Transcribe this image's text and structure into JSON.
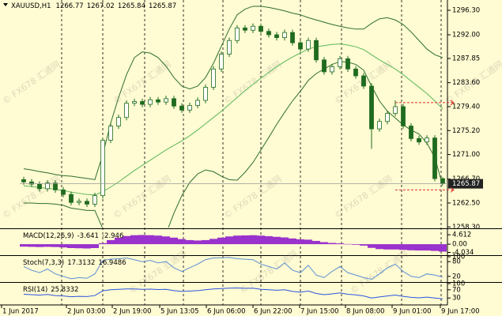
{
  "chart_data": {
    "type": "candlestick",
    "symbol": "XAUUSD,H1",
    "watermark": "© FX678 汇通网",
    "ohlc": [
      [
        1266.6,
        1267.1,
        1265.7,
        1266.2
      ],
      [
        1266.2,
        1266.7,
        1265.3,
        1265.8
      ],
      [
        1265.8,
        1266.3,
        1264.5,
        1265.0
      ],
      [
        1265.0,
        1266.5,
        1264.5,
        1266.0
      ],
      [
        1266.0,
        1266.5,
        1264.3,
        1264.8
      ],
      [
        1264.8,
        1265.3,
        1263.5,
        1264.0
      ],
      [
        1264.0,
        1264.5,
        1262.1,
        1262.6
      ],
      [
        1262.6,
        1263.3,
        1262.1,
        1262.8
      ],
      [
        1262.8,
        1263.3,
        1261.8,
        1262.3
      ],
      [
        1262.3,
        1264.3,
        1261.8,
        1263.8
      ],
      [
        1263.8,
        1274.0,
        1263.3,
        1273.5
      ],
      [
        1273.5,
        1276.5,
        1273.0,
        1276.0
      ],
      [
        1276.0,
        1278.0,
        1275.5,
        1277.5
      ],
      [
        1277.5,
        1280.5,
        1277.0,
        1280.0
      ],
      [
        1280.0,
        1280.8,
        1279.5,
        1280.3
      ],
      [
        1280.3,
        1280.8,
        1279.3,
        1279.8
      ],
      [
        1279.8,
        1281.1,
        1279.3,
        1280.6
      ],
      [
        1280.6,
        1281.1,
        1279.7,
        1280.2
      ],
      [
        1280.2,
        1281.3,
        1279.7,
        1280.8
      ],
      [
        1280.8,
        1281.3,
        1279.0,
        1279.5
      ],
      [
        1279.5,
        1280.0,
        1278.3,
        1278.8
      ],
      [
        1278.8,
        1280.1,
        1278.3,
        1279.6
      ],
      [
        1279.6,
        1281.0,
        1279.1,
        1280.5
      ],
      [
        1280.5,
        1283.3,
        1280.0,
        1282.8
      ],
      [
        1282.8,
        1286.5,
        1282.3,
        1286.0
      ],
      [
        1286.0,
        1289.1,
        1285.5,
        1288.6
      ],
      [
        1288.6,
        1291.5,
        1288.1,
        1291.0
      ],
      [
        1291.0,
        1293.7,
        1290.5,
        1293.2
      ],
      [
        1293.2,
        1293.7,
        1292.3,
        1292.8
      ],
      [
        1292.8,
        1294.0,
        1292.3,
        1293.5
      ],
      [
        1293.5,
        1294.0,
        1292.1,
        1292.6
      ],
      [
        1292.6,
        1293.1,
        1291.5,
        1292.0
      ],
      [
        1292.0,
        1292.5,
        1291.0,
        1291.5
      ],
      [
        1291.5,
        1292.9,
        1291.0,
        1292.4
      ],
      [
        1292.4,
        1292.9,
        1290.1,
        1290.6
      ],
      [
        1290.6,
        1291.1,
        1289.0,
        1289.5
      ],
      [
        1289.5,
        1291.5,
        1289.0,
        1291.0
      ],
      [
        1291.0,
        1291.5,
        1287.1,
        1287.6
      ],
      [
        1287.6,
        1288.1,
        1285.0,
        1285.5
      ],
      [
        1285.5,
        1286.9,
        1285.0,
        1286.4
      ],
      [
        1286.4,
        1288.3,
        1285.9,
        1287.8
      ],
      [
        1287.8,
        1288.3,
        1285.5,
        1286.0
      ],
      [
        1286.0,
        1286.5,
        1284.3,
        1284.8
      ],
      [
        1284.8,
        1285.3,
        1282.5,
        1283.0
      ],
      [
        1283.0,
        1283.5,
        1272.0,
        1275.5
      ],
      [
        1275.5,
        1277.3,
        1275.0,
        1276.8
      ],
      [
        1276.8,
        1278.7,
        1276.3,
        1278.2
      ],
      [
        1278.2,
        1280.5,
        1277.7,
        1279.4
      ],
      [
        1279.4,
        1279.9,
        1275.5,
        1276.0
      ],
      [
        1276.0,
        1276.5,
        1273.3,
        1273.8
      ],
      [
        1273.8,
        1274.3,
        1272.7,
        1273.2
      ],
      [
        1273.2,
        1274.4,
        1272.7,
        1273.9
      ],
      [
        1273.9,
        1274.4,
        1266.3,
        1266.77
      ],
      [
        1266.77,
        1267.02,
        1265.84,
        1265.87
      ]
    ],
    "bands": {
      "upper": [
        1268.5,
        1268.3,
        1268.0,
        1267.8,
        1267.5,
        1267.3,
        1267.2,
        1267.0,
        1266.8,
        1266.6,
        1271.0,
        1276.5,
        1281.0,
        1285.0,
        1288.0,
        1289.0,
        1288.8,
        1288.0,
        1286.5,
        1284.5,
        1283.0,
        1282.5,
        1283.0,
        1284.5,
        1287.0,
        1290.0,
        1293.0,
        1295.5,
        1296.5,
        1297.0,
        1297.0,
        1296.8,
        1296.5,
        1296.2,
        1295.8,
        1295.5,
        1295.0,
        1294.6,
        1294.2,
        1293.8,
        1293.5,
        1293.2,
        1293.0,
        1293.0,
        1294.0,
        1294.8,
        1295.0,
        1294.6,
        1293.8,
        1292.5,
        1291.0,
        1289.5,
        1288.5,
        1288.0
      ],
      "middle": [
        1265.5,
        1265.4,
        1265.2,
        1265.1,
        1264.9,
        1264.7,
        1264.4,
        1264.2,
        1264.0,
        1263.9,
        1264.5,
        1265.3,
        1266.2,
        1267.2,
        1268.2,
        1269.1,
        1270.0,
        1270.9,
        1271.8,
        1272.6,
        1273.4,
        1274.3,
        1275.3,
        1276.4,
        1277.5,
        1278.6,
        1279.8,
        1281.0,
        1282.2,
        1283.3,
        1284.4,
        1285.4,
        1286.4,
        1287.3,
        1288.1,
        1288.8,
        1289.5,
        1289.9,
        1290.1,
        1290.3,
        1290.4,
        1290.2,
        1289.9,
        1289.4,
        1288.5,
        1287.6,
        1286.8,
        1286.0,
        1285.0,
        1283.9,
        1282.8,
        1281.7,
        1280.4,
        1279.0
      ],
      "lower": [
        1262.5,
        1262.5,
        1262.4,
        1262.4,
        1262.3,
        1262.1,
        1261.6,
        1261.4,
        1261.2,
        1261.2,
        1258.0,
        1254.1,
        1251.4,
        1249.4,
        1248.4,
        1249.2,
        1251.2,
        1253.8,
        1257.1,
        1260.7,
        1263.8,
        1266.1,
        1267.6,
        1268.3,
        1268.0,
        1267.2,
        1266.6,
        1266.5,
        1267.9,
        1269.6,
        1271.8,
        1274.0,
        1276.3,
        1278.4,
        1280.4,
        1282.1,
        1284.0,
        1285.2,
        1286.0,
        1286.8,
        1287.3,
        1287.2,
        1286.8,
        1285.8,
        1283.0,
        1280.4,
        1278.6,
        1277.4,
        1276.2,
        1275.3,
        1274.6,
        1273.0,
        1270.5,
        1265.5
      ],
      "outer_color": "#2f6f2f",
      "middle_color": "#5cb85c"
    },
    "bull_color": "#ffffff",
    "bear_color": "#1f6b1f",
    "ylim": [
      1258.2,
      1298.1
    ],
    "yticks": [
      {
        "value": 1296.3,
        "label": "1296.30"
      },
      {
        "value": 1292,
        "label": "1292.00"
      },
      {
        "value": 1287.85,
        "label": "1287.85"
      },
      {
        "value": 1283.6,
        "label": "1283.60"
      },
      {
        "value": 1279.4,
        "label": "1279.40"
      },
      {
        "value": 1275.2,
        "label": "1275.20"
      },
      {
        "value": 1271,
        "label": "1271.00"
      },
      {
        "value": 1266.7,
        "label": "1266.70"
      },
      {
        "value": 1262.5,
        "label": "1262.50"
      },
      {
        "value": 1258.3,
        "label": "1258.30"
      }
    ],
    "trade_levels": [
      1280.1,
      1264.8
    ],
    "x_labels": [
      "1 Jun 2017",
      "2 Jun 03:00",
      "2 Jun 19:00",
      "5 Jun 13:05",
      "6 Jun 06:00",
      "6 Jun 22:00",
      "7 Jun 15:00",
      "8 Jun 08:00",
      "9 Jun 01:00",
      "9 Jun 17:00"
    ],
    "indicators": [
      {
        "type": "histogram",
        "label": "MACD(12,26,9)",
        "color": "#9a32cd",
        "signal_last": -2.946,
        "values": [
          -1.2,
          -1.3,
          -1.4,
          -1.3,
          -1.4,
          -1.6,
          -1.9,
          -2.0,
          -2.1,
          -1.9,
          0.5,
          2.0,
          3.2,
          4.0,
          4.4,
          4.5,
          4.4,
          4.2,
          3.8,
          3.2,
          2.5,
          2.0,
          1.8,
          2.0,
          2.6,
          3.2,
          3.8,
          4.2,
          4.3,
          4.4,
          4.2,
          3.9,
          3.6,
          3.3,
          2.8,
          2.4,
          2.2,
          1.6,
          1.0,
          0.6,
          0.4,
          0.1,
          -0.3,
          -0.7,
          -1.8,
          -2.4,
          -2.6,
          -2.6,
          -2.8,
          -3.0,
          -3.1,
          -3.1,
          -3.3,
          -3.641
        ],
        "ylim": [
          -5,
          7
        ],
        "yticks": [
          4.612,
          {
            "value": 0,
            "label": "0.00"
          },
          -4.034
        ]
      },
      {
        "type": "line",
        "label": "Stoch(7,3,3)",
        "color": "#5b8fd6",
        "signal_last": 16.9486,
        "values": [
          60,
          45,
          35,
          50,
          30,
          20,
          10,
          15,
          12,
          30,
          85,
          90,
          92,
          95,
          88,
          80,
          85,
          75,
          80,
          55,
          40,
          55,
          70,
          88,
          95,
          96,
          97,
          92,
          90,
          88,
          70,
          60,
          50,
          75,
          45,
          35,
          65,
          25,
          15,
          40,
          60,
          35,
          25,
          15,
          8,
          30,
          55,
          70,
          40,
          20,
          15,
          30,
          25,
          17.3132
        ],
        "ylim": [
          0,
          100
        ],
        "yticks": [
          100,
          80,
          20
        ]
      },
      {
        "type": "line",
        "label": "RSI(14)",
        "color": "#2a55e0",
        "values": [
          48,
          46,
          44,
          47,
          42,
          40,
          36,
          38,
          37,
          42,
          65,
          70,
          72,
          74,
          74,
          72,
          73,
          71,
          72,
          66,
          62,
          64,
          66,
          70,
          74,
          76,
          78,
          79,
          77,
          78,
          72,
          70,
          68,
          70,
          62,
          58,
          64,
          52,
          46,
          50,
          55,
          48,
          45,
          40,
          30,
          35,
          40,
          44,
          38,
          33,
          31,
          34,
          30,
          25.8332
        ],
        "ylim": [
          0,
          100
        ],
        "yticks": [
          100,
          70,
          30
        ]
      }
    ]
  }
}
